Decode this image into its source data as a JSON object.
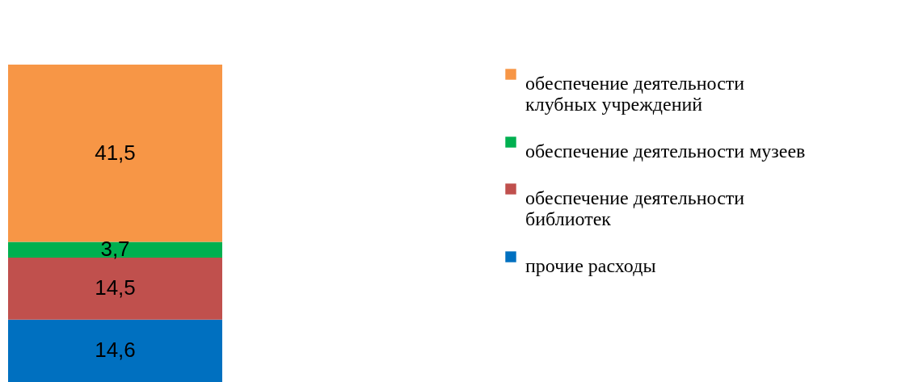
{
  "chart_data": {
    "type": "bar",
    "stacked": true,
    "categories": [
      null
    ],
    "legend": "right",
    "series": [
      {
        "name": "прочие расходы",
        "color": "#0070c0",
        "values": [
          14.6
        ],
        "value_labels": [
          "14,6"
        ]
      },
      {
        "name": "обеспечение деятельности библиотек",
        "color": "#c0504d",
        "values": [
          14.5
        ],
        "value_labels": [
          "14,5"
        ]
      },
      {
        "name": "обеспечение деятельности музеев",
        "color": "#00b050",
        "values": [
          3.7
        ],
        "value_labels": [
          "3,7"
        ]
      },
      {
        "name": "обеспечение деятельности клубных учреждений",
        "color": "#f79646",
        "values": [
          41.5
        ],
        "value_labels": [
          "41,5"
        ]
      }
    ]
  }
}
